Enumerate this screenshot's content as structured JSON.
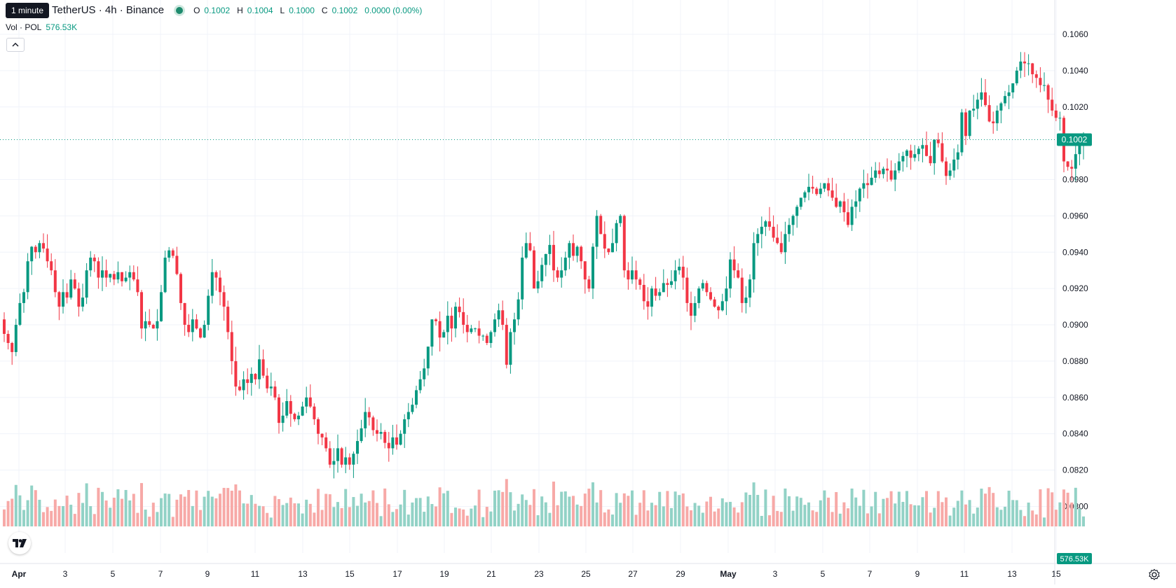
{
  "header": {
    "tooltip": "1 minute",
    "symbol_title": "TetherUS · 4h · Binance",
    "ohlc": {
      "o_label": "O",
      "o_value": "0.1002",
      "h_label": "H",
      "h_value": "0.1004",
      "l_label": "L",
      "l_value": "0.1000",
      "c_label": "C",
      "c_value": "0.1002",
      "change": "0.0000 (0.00%)"
    },
    "volume_label": "Vol · POL",
    "volume_value": "576.53K"
  },
  "price_scale": {
    "ticks": [
      "0.1060",
      "0.1040",
      "0.1020",
      "0.0980",
      "0.0960",
      "0.0940",
      "0.0920",
      "0.0900",
      "0.0880",
      "0.0860",
      "0.0840",
      "0.0820",
      "0.0800"
    ],
    "current_price_label": "0.1002",
    "current_volume_label": "576.53K"
  },
  "time_scale": {
    "labels": [
      "Apr",
      "3",
      "5",
      "7",
      "9",
      "11",
      "13",
      "15",
      "17",
      "19",
      "21",
      "23",
      "25",
      "27",
      "29",
      "May",
      "3",
      "5",
      "7",
      "9",
      "11",
      "13",
      "15"
    ]
  },
  "colors": {
    "up": "#089981",
    "down": "#f23645",
    "up_volume": "#92d2c6",
    "down_volume": "#f7a9a7",
    "grid": "#f0f3fa",
    "axis_text": "#131722",
    "price_line": "#089981"
  },
  "icons": {
    "logo": "tradingview-logo-icon",
    "collapse": "chevron-up-icon",
    "settings": "gear-icon"
  },
  "chart_data": {
    "type": "candlestick",
    "symbol": "TetherUS · 4h · Binance",
    "interval_hours": 4,
    "start": "2024-03-31 16:00",
    "y_price_range": [
      0.0795,
      0.1068
    ],
    "grid": true,
    "last": {
      "open": 0.1002,
      "high": 0.1004,
      "low": 0.1,
      "close": 0.1002,
      "volume": "576.53K"
    },
    "closes": [
      0.0895,
      0.089,
      0.0885,
      0.09,
      0.0912,
      0.0918,
      0.0935,
      0.0943,
      0.094,
      0.0945,
      0.0942,
      0.0935,
      0.093,
      0.0918,
      0.091,
      0.0918,
      0.0915,
      0.0925,
      0.092,
      0.091,
      0.0915,
      0.093,
      0.0937,
      0.0935,
      0.0926,
      0.093,
      0.0926,
      0.0928,
      0.0925,
      0.0929,
      0.0924,
      0.0926,
      0.0929,
      0.0925,
      0.0918,
      0.0898,
      0.0902,
      0.09,
      0.0898,
      0.0902,
      0.0918,
      0.0937,
      0.0941,
      0.0938,
      0.0928,
      0.0912,
      0.09,
      0.0896,
      0.0903,
      0.0898,
      0.0893,
      0.09,
      0.0916,
      0.0929,
      0.0926,
      0.0918,
      0.091,
      0.0896,
      0.088,
      0.0866,
      0.0864,
      0.087,
      0.0868,
      0.0873,
      0.087,
      0.0881,
      0.0872,
      0.0865,
      0.0866,
      0.086,
      0.0846,
      0.085,
      0.0858,
      0.0851,
      0.0848,
      0.085,
      0.0855,
      0.086,
      0.0855,
      0.0848,
      0.084,
      0.0838,
      0.0832,
      0.0823,
      0.0825,
      0.0832,
      0.0823,
      0.0827,
      0.0823,
      0.0829,
      0.0836,
      0.0843,
      0.0852,
      0.0849,
      0.0842,
      0.084,
      0.0841,
      0.0835,
      0.0832,
      0.0838,
      0.0834,
      0.084,
      0.0848,
      0.0852,
      0.0856,
      0.0864,
      0.087,
      0.0876,
      0.0888,
      0.0903,
      0.0902,
      0.0893,
      0.0896,
      0.0905,
      0.0898,
      0.091,
      0.0907,
      0.09,
      0.0896,
      0.0898,
      0.0898,
      0.0894,
      0.0894,
      0.089,
      0.0896,
      0.0903,
      0.0908,
      0.09,
      0.0878,
      0.0896,
      0.0903,
      0.0914,
      0.0937,
      0.0945,
      0.0941,
      0.092,
      0.0924,
      0.0933,
      0.0939,
      0.0944,
      0.093,
      0.0926,
      0.093,
      0.0937,
      0.0945,
      0.0938,
      0.0943,
      0.0935,
      0.0925,
      0.092,
      0.0943,
      0.096,
      0.095,
      0.0942,
      0.094,
      0.0945,
      0.0956,
      0.096,
      0.093,
      0.0925,
      0.093,
      0.0925,
      0.0922,
      0.0913,
      0.091,
      0.092,
      0.0916,
      0.0918,
      0.0923,
      0.0922,
      0.0924,
      0.093,
      0.0932,
      0.0926,
      0.0912,
      0.0905,
      0.0912,
      0.092,
      0.0923,
      0.0918,
      0.0914,
      0.091,
      0.0908,
      0.0913,
      0.092,
      0.0936,
      0.093,
      0.0926,
      0.0912,
      0.0915,
      0.0925,
      0.0945,
      0.095,
      0.0954,
      0.0957,
      0.0954,
      0.0948,
      0.0945,
      0.094,
      0.095,
      0.0955,
      0.096,
      0.0965,
      0.097,
      0.0973,
      0.0976,
      0.0975,
      0.0972,
      0.0975,
      0.0978,
      0.0974,
      0.097,
      0.0965,
      0.0968,
      0.0962,
      0.0955,
      0.0965,
      0.0968,
      0.0975,
      0.0978,
      0.0977,
      0.0981,
      0.0985,
      0.0983,
      0.0986,
      0.0985,
      0.098,
      0.0985,
      0.099,
      0.0993,
      0.0996,
      0.0992,
      0.0994,
      0.0997,
      0.0999,
      0.0993,
      0.0989,
      0.1002,
      0.1,
      0.099,
      0.0982,
      0.0985,
      0.0991,
      0.0995,
      0.1017,
      0.1004,
      0.1018,
      0.1019,
      0.1024,
      0.1028,
      0.1021,
      0.1012,
      0.1011,
      0.1018,
      0.1022,
      0.1026,
      0.1028,
      0.1033,
      0.104,
      0.1045,
      0.1044,
      0.1044,
      0.1038,
      0.1036,
      0.1032,
      0.1032,
      0.1024,
      0.1018,
      0.1014,
      0.1014,
      0.099,
      0.0987,
      0.0986,
      0.0994,
      0.0999,
      0.1002
    ],
    "x_axis_labels": [
      "Apr",
      "3",
      "5",
      "7",
      "9",
      "11",
      "13",
      "15",
      "17",
      "19",
      "21",
      "23",
      "25",
      "27",
      "29",
      "May",
      "3",
      "5",
      "7",
      "9",
      "11",
      "13",
      "15"
    ],
    "y_axis_ticks": [
      0.106,
      0.104,
      0.102,
      0.098,
      0.096,
      0.094,
      0.092,
      0.09,
      0.088,
      0.086,
      0.084,
      0.082,
      0.08
    ],
    "volume_series_label": "Vol · POL"
  }
}
